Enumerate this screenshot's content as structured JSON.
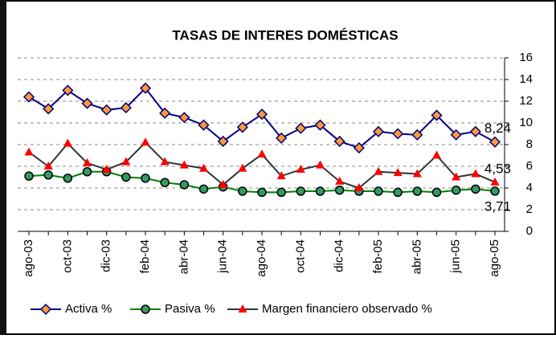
{
  "chart_data": {
    "type": "line",
    "title": "TASAS DE INTERES DOMÉSTICAS",
    "categories": [
      "ago-03",
      null,
      "oct-03",
      null,
      "dic-03",
      null,
      "feb-04",
      null,
      "abr-04",
      null,
      "jun-04",
      null,
      "ago-04",
      null,
      "oct-04",
      null,
      "dic-04",
      null,
      "feb-05",
      null,
      "abr-05",
      null,
      "jun-05",
      null,
      "ago-05"
    ],
    "series": [
      {
        "name": "Activa %",
        "color": "#000080",
        "marker": "diamond",
        "marker_color": "#ff9933",
        "values": [
          12.4,
          11.3,
          13.0,
          11.8,
          11.2,
          11.4,
          13.2,
          10.9,
          10.5,
          9.8,
          8.3,
          9.6,
          10.8,
          8.6,
          9.5,
          9.8,
          8.3,
          7.7,
          9.2,
          9.0,
          8.9,
          10.7,
          8.9,
          9.2,
          8.24
        ],
        "value_labels": [
          null,
          null,
          null,
          null,
          null,
          null,
          null,
          null,
          null,
          null,
          null,
          null,
          null,
          null,
          null,
          null,
          null,
          null,
          null,
          null,
          null,
          null,
          null,
          null,
          "8,24"
        ]
      },
      {
        "name": "Pasiva %",
        "color": "#008000",
        "marker": "circle",
        "marker_color": "#339966",
        "values": [
          5.1,
          5.2,
          4.9,
          5.5,
          5.5,
          5.0,
          4.9,
          4.5,
          4.3,
          3.9,
          4.1,
          3.7,
          3.6,
          3.6,
          3.7,
          3.7,
          3.8,
          3.7,
          3.7,
          3.6,
          3.7,
          3.6,
          3.8,
          3.9,
          3.71
        ],
        "value_labels": [
          null,
          null,
          null,
          null,
          null,
          null,
          null,
          null,
          null,
          null,
          null,
          null,
          null,
          null,
          null,
          null,
          null,
          null,
          null,
          null,
          null,
          null,
          null,
          null,
          "3,71"
        ]
      },
      {
        "name": "Margen financiero observado %",
        "color": "#333333",
        "marker": "triangle",
        "marker_color": "#ff0000",
        "values": [
          7.3,
          6.0,
          8.1,
          6.3,
          5.7,
          6.4,
          8.2,
          6.4,
          6.1,
          5.8,
          4.3,
          5.8,
          7.1,
          5.1,
          5.7,
          6.1,
          4.6,
          4.0,
          5.5,
          5.4,
          5.3,
          7.0,
          5.0,
          5.3,
          4.53
        ],
        "value_labels": [
          null,
          null,
          null,
          null,
          null,
          null,
          null,
          null,
          null,
          null,
          null,
          null,
          null,
          null,
          null,
          null,
          null,
          null,
          null,
          null,
          null,
          null,
          null,
          null,
          "4,53"
        ]
      }
    ],
    "ylim": [
      0,
      16
    ],
    "yticks": [
      0,
      2,
      4,
      6,
      8,
      10,
      12,
      14,
      16
    ],
    "y_axis_side": "right",
    "grid": true,
    "legend": "bottom"
  }
}
